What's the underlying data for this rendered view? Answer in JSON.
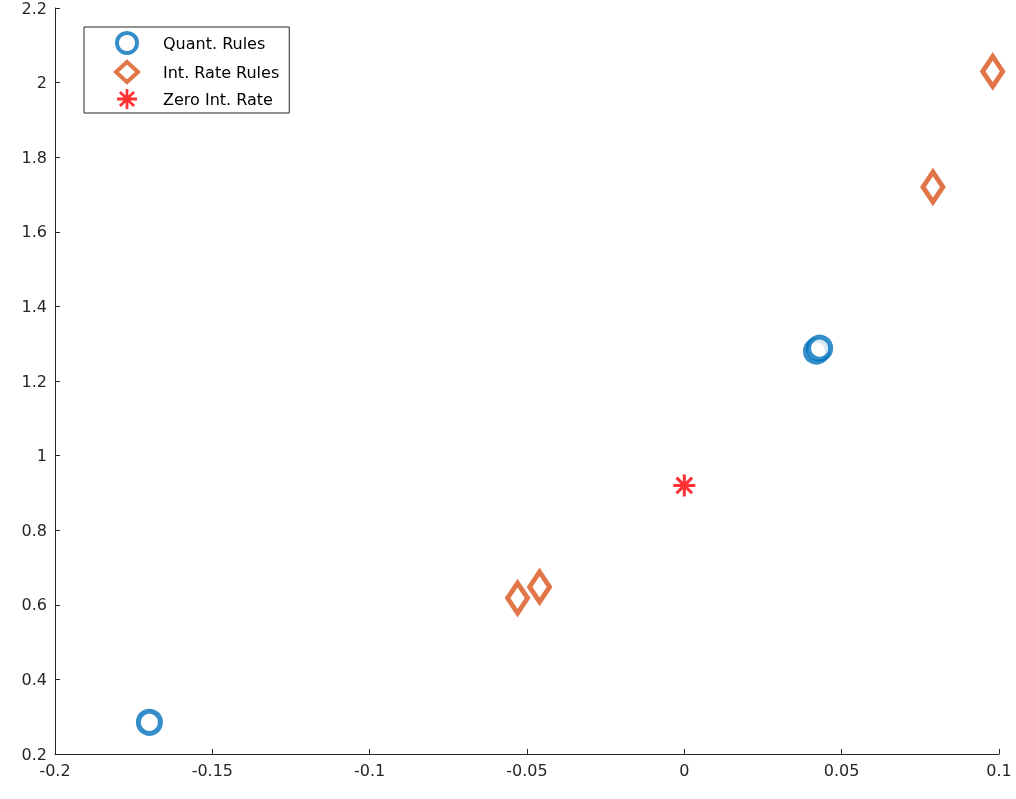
{
  "chart_data": {
    "type": "scatter",
    "xlim": [
      -0.2,
      0.1
    ],
    "xticks": [
      -0.2,
      -0.15,
      -0.1,
      -0.05,
      0,
      0.05,
      0.1
    ],
    "ylim": [
      0.2,
      2.2
    ],
    "yticks": [
      0.2,
      0.4,
      0.6,
      0.8,
      1,
      1.2,
      1.4,
      1.6,
      1.8,
      2,
      2.2
    ],
    "grid": false,
    "legend": "top left",
    "series": [
      {
        "name": "Quant. Rules",
        "color": "#0072bd",
        "marker": "circle",
        "x": [
          -0.17,
          0.042,
          0.043
        ],
        "values": [
          0.285,
          1.28,
          1.288
        ]
      },
      {
        "name": "Int. Rate Rules",
        "color": "#d95319",
        "marker": "diamond",
        "x": [
          -0.053,
          -0.046,
          0.079,
          0.098
        ],
        "values": [
          0.618,
          0.648,
          1.72,
          2.03
        ]
      },
      {
        "name": "Zero Int. Rate",
        "color": "#ff0000",
        "marker": "cross",
        "x": [
          0
        ],
        "values": [
          0.92
        ]
      }
    ]
  }
}
